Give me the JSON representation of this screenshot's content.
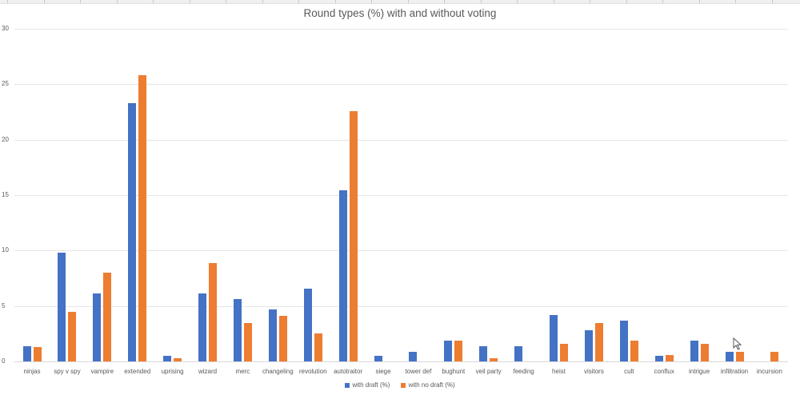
{
  "chart_data": {
    "type": "bar",
    "title": "Round types (%) with and without voting",
    "xlabel": "",
    "ylabel": "",
    "ylim": [
      0,
      30
    ],
    "yticks": [
      0,
      5,
      10,
      15,
      20,
      25,
      30
    ],
    "grid": true,
    "legend_position": "bottom",
    "categories": [
      "ninjas",
      "spy v spy",
      "vampire",
      "extended",
      "uprising",
      "wizard",
      "merc",
      "changeling",
      "revolution",
      "autotraitor",
      "siege",
      "tower def",
      "bughunt",
      "veil party",
      "feeding",
      "heist",
      "visitors",
      "cult",
      "conflux",
      "intrigue",
      "infiltration",
      "incursion"
    ],
    "series": [
      {
        "name": "with draft (%)",
        "color": "#4472c4",
        "values": [
          1.4,
          9.8,
          6.1,
          23.3,
          0.5,
          6.1,
          5.6,
          4.7,
          6.6,
          15.4,
          0.5,
          0.9,
          1.9,
          1.4,
          1.4,
          4.2,
          2.8,
          3.7,
          0.5,
          1.9,
          0.9,
          0
        ]
      },
      {
        "name": "with no draft (%)",
        "color": "#ed7d31",
        "values": [
          1.3,
          4.5,
          8.0,
          25.8,
          0.3,
          8.9,
          3.5,
          4.1,
          2.5,
          22.6,
          0,
          0,
          1.9,
          0.3,
          0,
          1.6,
          3.5,
          1.9,
          0.6,
          1.6,
          0.9,
          0.9
        ]
      }
    ]
  },
  "legend": {
    "items": [
      {
        "label": "with draft (%)",
        "color": "#4472c4"
      },
      {
        "label": "with no draft (%)",
        "color": "#ed7d31"
      }
    ]
  }
}
